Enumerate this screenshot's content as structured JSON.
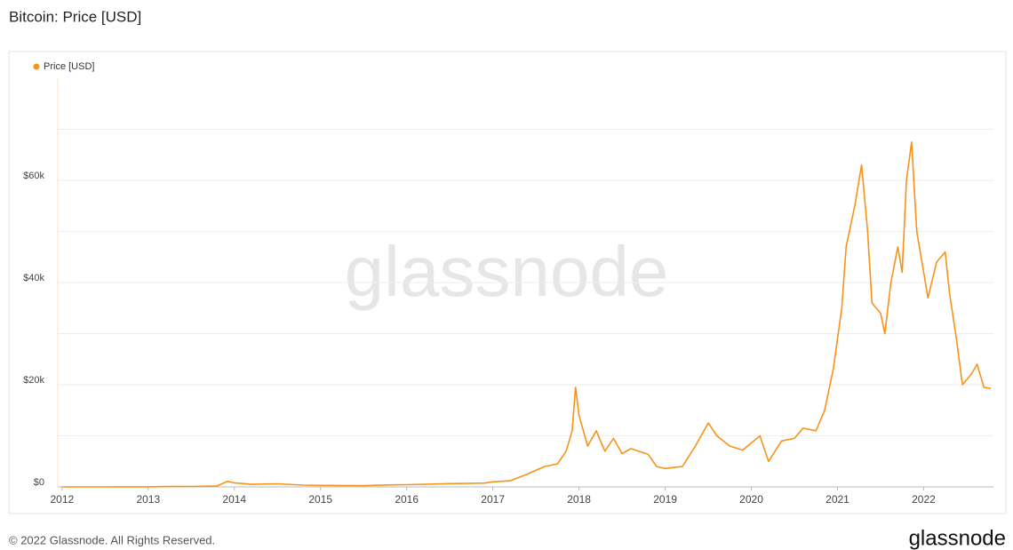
{
  "chart_data": {
    "type": "line",
    "title": "Bitcoin: Price [USD]",
    "watermark": "glassnode",
    "footer": "© 2022 Glassnode. All Rights Reserved.",
    "brand": "glassnode",
    "x": [
      2012.0,
      2012.5,
      2013.0,
      2013.3,
      2013.5,
      2013.8,
      2013.92,
      2014.0,
      2014.2,
      2014.5,
      2014.8,
      2015.0,
      2015.5,
      2015.85,
      2016.0,
      2016.5,
      2016.9,
      2017.0,
      2017.2,
      2017.4,
      2017.6,
      2017.75,
      2017.85,
      2017.92,
      2017.96,
      2018.0,
      2018.1,
      2018.2,
      2018.3,
      2018.4,
      2018.5,
      2018.6,
      2018.8,
      2018.9,
      2019.0,
      2019.2,
      2019.35,
      2019.5,
      2019.6,
      2019.75,
      2019.9,
      2020.1,
      2020.2,
      2020.35,
      2020.5,
      2020.6,
      2020.75,
      2020.85,
      2020.95,
      2021.05,
      2021.1,
      2021.2,
      2021.28,
      2021.35,
      2021.4,
      2021.5,
      2021.55,
      2021.62,
      2021.7,
      2021.75,
      2021.8,
      2021.86,
      2021.92,
      2022.0,
      2022.05,
      2022.15,
      2022.25,
      2022.3,
      2022.38,
      2022.45,
      2022.55,
      2022.62,
      2022.7,
      2022.78
    ],
    "series": [
      {
        "name": "Price [USD]",
        "color": "#f7931a",
        "values": [
          5,
          7,
          13,
          100,
          90,
          200,
          1100,
          800,
          500,
          600,
          350,
          300,
          250,
          400,
          430,
          650,
          750,
          1000,
          1200,
          2500,
          4000,
          4500,
          7000,
          11000,
          19500,
          14000,
          8000,
          11000,
          7000,
          9500,
          6500,
          7500,
          6400,
          4000,
          3600,
          4000,
          8000,
          12500,
          10000,
          8000,
          7200,
          10000,
          5000,
          9000,
          9500,
          11500,
          11000,
          15000,
          23000,
          35000,
          47000,
          55000,
          63000,
          50000,
          36000,
          34000,
          30000,
          40000,
          47000,
          42000,
          60000,
          67500,
          50000,
          42000,
          37000,
          44000,
          46000,
          38000,
          29000,
          20000,
          22000,
          24000,
          19500,
          19300
        ]
      }
    ],
    "xlim": [
      2011.95,
      2022.81
    ],
    "xticks": [
      2012,
      2013,
      2014,
      2015,
      2016,
      2017,
      2018,
      2019,
      2020,
      2021,
      2022
    ],
    "ylim": [
      0,
      80000
    ],
    "yticks": [
      {
        "value": 0,
        "label": "$0"
      },
      {
        "value": 20000,
        "label": "$20k"
      },
      {
        "value": 40000,
        "label": "$40k"
      },
      {
        "value": 60000,
        "label": "$60k"
      }
    ],
    "y_gridlines": [
      10000,
      30000,
      50000,
      70000
    ],
    "grid": true,
    "legend": "top-left"
  }
}
